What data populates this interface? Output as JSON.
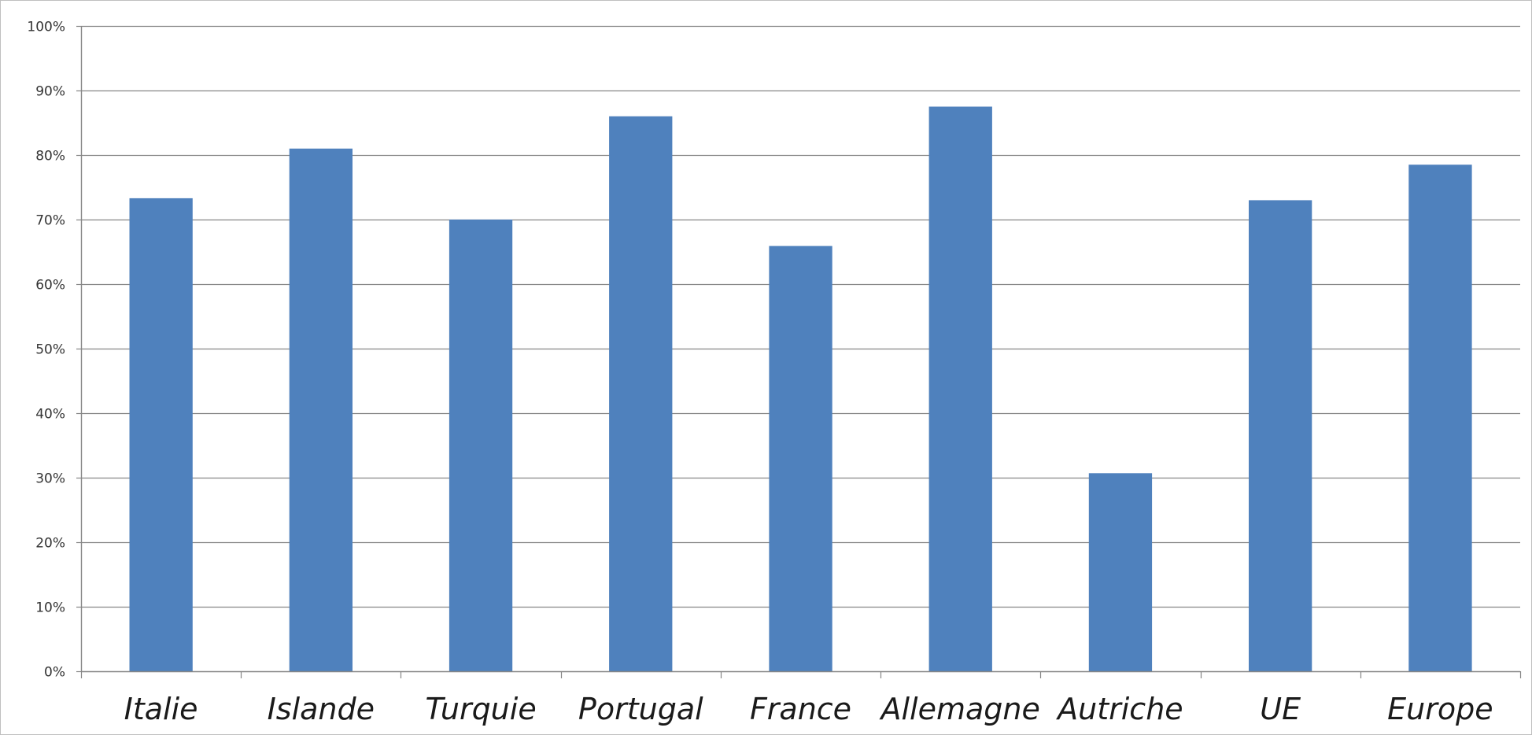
{
  "chart_data": {
    "type": "bar",
    "categories": [
      "Italie",
      "Islande",
      "Turquie",
      "Portugal",
      "France",
      "Allemagne",
      "Autriche",
      "UE",
      "Europe"
    ],
    "values": [
      73.3,
      81,
      70,
      86,
      65.9,
      87.5,
      30.7,
      73,
      78.5
    ],
    "y_tick_labels": [
      "0%",
      "10%",
      "20%",
      "30%",
      "40%",
      "50%",
      "60%",
      "70%",
      "80%",
      "90%",
      "100%"
    ],
    "ylim": [
      0,
      100
    ],
    "y_unit": "%",
    "grid": true,
    "legend": "none",
    "bar_color": "#4f81bd",
    "grid_color": "#868686",
    "axis_color": "#868686"
  }
}
